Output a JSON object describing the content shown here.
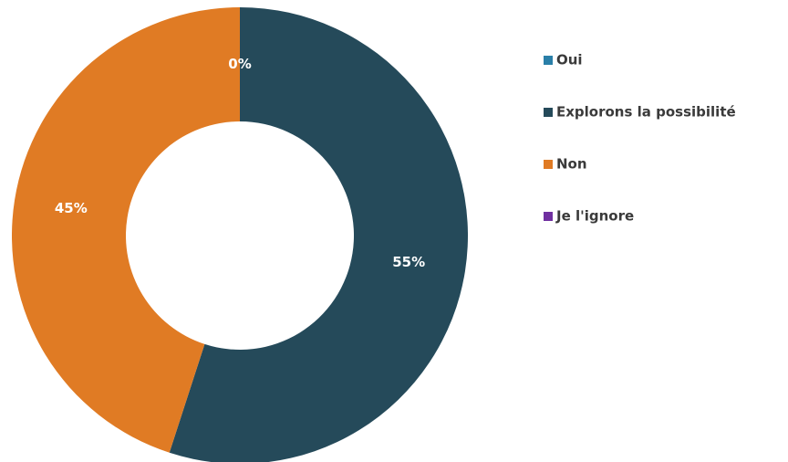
{
  "chart_data": {
    "type": "donut",
    "categories": [
      "Oui",
      "Explorons la possibilité",
      "Non",
      "Je l'ignore"
    ],
    "values": [
      0,
      55,
      45,
      0
    ],
    "value_labels": [
      "0%",
      "55%",
      "45%",
      null
    ],
    "colors": [
      "#2a7fa8",
      "#254a5a",
      "#e07b24",
      "#7030a0"
    ],
    "legend": "right"
  }
}
